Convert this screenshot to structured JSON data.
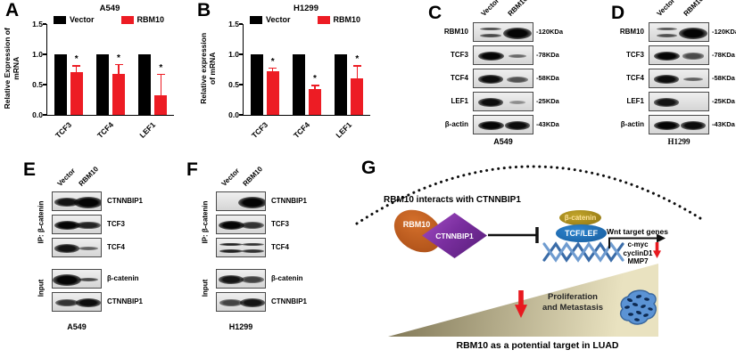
{
  "panels": {
    "A": {
      "label": "A"
    },
    "B": {
      "label": "B"
    },
    "C": {
      "label": "C",
      "cell_line": "A549",
      "lanes": [
        "Vector",
        "RBM10"
      ],
      "rows": [
        {
          "protein": "RBM10",
          "marker": "-120KDa",
          "bands": [
            {
              "i": 0.55,
              "style": "doublet"
            },
            {
              "i": 1,
              "style": "blob"
            }
          ]
        },
        {
          "protein": "TCF3",
          "marker": "-78KDa",
          "bands": [
            {
              "i": 1
            },
            {
              "i": 0.35,
              "style": "thin"
            }
          ]
        },
        {
          "protein": "TCF4",
          "marker": "-58KDa",
          "bands": [
            {
              "i": 0.95
            },
            {
              "i": 0.5
            }
          ]
        },
        {
          "protein": "LEF1",
          "marker": "-25KDa",
          "bands": [
            {
              "i": 0.95
            },
            {
              "i": 0.12,
              "style": "thin"
            }
          ]
        },
        {
          "protein": "β-actin",
          "marker": "-43KDa",
          "bands": [
            {
              "i": 1
            },
            {
              "i": 0.95
            }
          ]
        }
      ]
    },
    "D": {
      "label": "D",
      "cell_line": "H1299",
      "lanes": [
        "Vector",
        "RBM10"
      ],
      "rows": [
        {
          "protein": "RBM10",
          "marker": "-120KDa",
          "bands": [
            {
              "i": 0.5,
              "style": "doublet"
            },
            {
              "i": 1,
              "style": "blob"
            }
          ]
        },
        {
          "protein": "TCF3",
          "marker": "-78KDa",
          "bands": [
            {
              "i": 1
            },
            {
              "i": 0.55
            }
          ]
        },
        {
          "protein": "TCF4",
          "marker": "-58KDa",
          "bands": [
            {
              "i": 0.95
            },
            {
              "i": 0.4,
              "style": "thin"
            }
          ]
        },
        {
          "protein": "LEF1",
          "marker": "-25KDa",
          "bands": [
            {
              "i": 0.9
            },
            {
              "i": 0
            }
          ]
        },
        {
          "protein": "β-actin",
          "marker": "-43KDa",
          "bands": [
            {
              "i": 1
            },
            {
              "i": 0.95
            }
          ]
        }
      ]
    },
    "E": {
      "label": "E",
      "cell_line": "A549",
      "lanes": [
        "Vector",
        "RBM10"
      ],
      "groups": [
        {
          "name": "IP: β-catenin",
          "rows": [
            {
              "protein": "CTNNBIP1",
              "bands": [
                {
                  "i": 0.9
                },
                {
                  "i": 1,
                  "style": "blob"
                }
              ]
            },
            {
              "protein": "TCF3",
              "bands": [
                {
                  "i": 1
                },
                {
                  "i": 0.8
                }
              ]
            },
            {
              "protein": "TCF4",
              "bands": [
                {
                  "i": 0.9
                },
                {
                  "i": 0.4,
                  "style": "thin"
                }
              ]
            }
          ]
        },
        {
          "name": "Input",
          "rows": [
            {
              "protein": "β-catenin",
              "bands": [
                {
                  "i": 1,
                  "style": "blob"
                },
                {
                  "i": 0.55,
                  "style": "thin"
                }
              ]
            },
            {
              "protein": "CTNNBIP1",
              "bands": [
                {
                  "i": 0.7
                },
                {
                  "i": 0.95
                }
              ]
            }
          ]
        }
      ]
    },
    "F": {
      "label": "F",
      "cell_line": "H1299",
      "lanes": [
        "Vector",
        "RBM10"
      ],
      "groups": [
        {
          "name": "IP: β-catenin",
          "rows": [
            {
              "protein": "CTNNBIP1",
              "bands": [
                {
                  "i": 0
                },
                {
                  "i": 1,
                  "style": "blob"
                }
              ]
            },
            {
              "protein": "TCF3",
              "bands": [
                {
                  "i": 1
                },
                {
                  "i": 0.7
                }
              ]
            },
            {
              "protein": "TCF4",
              "bands": [
                {
                  "i": 0.8,
                  "style": "doublet"
                },
                {
                  "i": 0.7,
                  "style": "doublet"
                }
              ]
            }
          ]
        },
        {
          "name": "Input",
          "rows": [
            {
              "protein": "β-catenin",
              "bands": [
                {
                  "i": 0.9
                },
                {
                  "i": 0.6
                }
              ]
            },
            {
              "protein": "CTNNBIP1",
              "bands": [
                {
                  "i": 0.6
                },
                {
                  "i": 0.9
                }
              ]
            }
          ]
        }
      ]
    },
    "G": {
      "label": "G",
      "headline": "RBM10 interacts with CTNNBIP1",
      "rbm10_label": "RBM10",
      "ctnnbip1_label": "CTNNBIP1",
      "beta_catenin_label": "β-catenin",
      "tcf_lef_label": "TCF/LEF",
      "wnt_label": "Wnt target genes",
      "genes": [
        "c-myc",
        "cyclinD1",
        "MMP7"
      ],
      "effect_line1": "Proliferation",
      "effect_line2": "and Metastasis",
      "caption": "RBM10 as a potential target in LUAD"
    }
  },
  "chart_data": [
    {
      "type": "bar",
      "panel": "A",
      "title": "A549",
      "categories": [
        "TCF3",
        "TCF4",
        "LEF1"
      ],
      "ylabel": "Relative Expression of mRNA",
      "ylabel_lines": [
        "Relative Expression of",
        "mRNA"
      ],
      "ylim": [
        0,
        1.5
      ],
      "yticks": [
        "0.0",
        "0.5",
        "1.0",
        "1.5"
      ],
      "grid": false,
      "legend_position": "top",
      "series": [
        {
          "name": "Vector",
          "color": "#000000",
          "values": [
            1.0,
            1.0,
            1.0
          ]
        },
        {
          "name": "RBM10",
          "color": "#ED1C24",
          "values": [
            0.7,
            0.68,
            0.33
          ],
          "errors": [
            0.12,
            0.16,
            0.35
          ],
          "sig": [
            "*",
            "*",
            "*"
          ]
        }
      ]
    },
    {
      "type": "bar",
      "panel": "B",
      "title": "H1299",
      "categories": [
        "TCF3",
        "TCF4",
        "LEF1"
      ],
      "ylabel": "Relative expression of mRNA",
      "ylabel_lines": [
        "Relative expression",
        "of mRNA"
      ],
      "ylim": [
        0,
        1.5
      ],
      "yticks": [
        "0.0",
        "0.5",
        "1.0",
        "1.5"
      ],
      "grid": false,
      "legend_position": "top",
      "series": [
        {
          "name": "Vector",
          "color": "#000000",
          "values": [
            1.0,
            1.0,
            1.0
          ]
        },
        {
          "name": "RBM10",
          "color": "#ED1C24",
          "values": [
            0.72,
            0.42,
            0.6
          ],
          "errors": [
            0.06,
            0.08,
            0.22
          ],
          "sig": [
            "*",
            "*",
            "*"
          ]
        }
      ]
    }
  ],
  "colors": {
    "vector_bar": "#000000",
    "rbm10_bar": "#ED1C24",
    "error_bar": "#ED1C24",
    "rbm10_ellipse": "#C05A1E",
    "ctnnbip1_diamond": "#7B2FA0",
    "beta_catenin_ellipse": "#A8891C",
    "tcf_lef_ellipse": "#1F6FB8",
    "dna": "#3A6CA8",
    "down_arrow": "#E8191F",
    "ramp_dark": "#7E7554",
    "ramp_light": "#E9E2C0",
    "tumor_cells": "#5B93D4"
  }
}
